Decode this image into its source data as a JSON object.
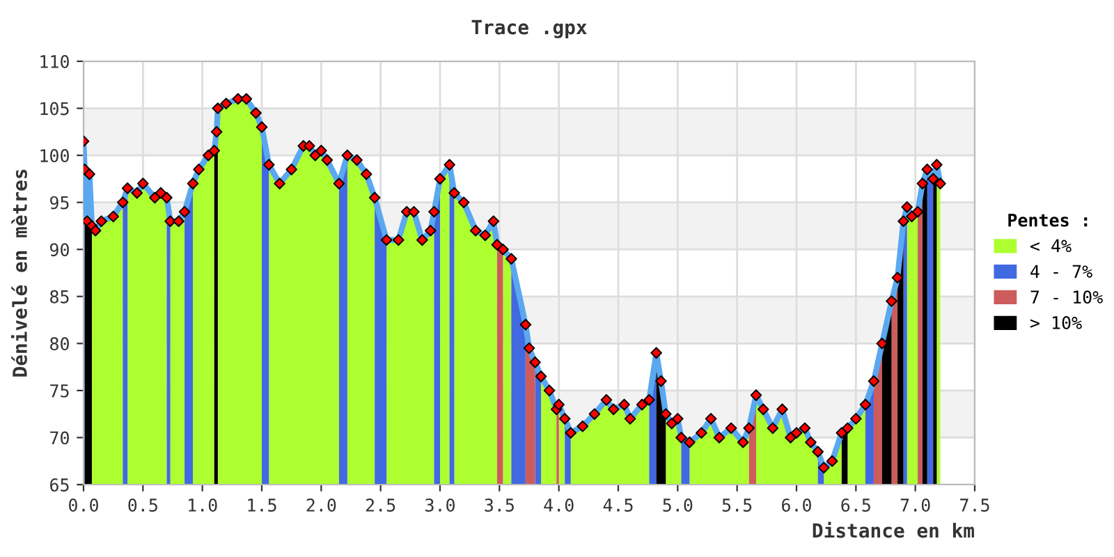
{
  "chart_data": {
    "type": "area",
    "title": "Trace .gpx",
    "xlabel": "Distance en km",
    "ylabel": "Dénivelé en mètres",
    "legend_title": "Pentes :",
    "xlim": [
      0,
      7.5
    ],
    "ylim": [
      65,
      110
    ],
    "xticks": [
      {
        "value": 0,
        "label": "0.0"
      },
      0.5,
      {
        "value": 1,
        "label": "1.0"
      },
      1.5,
      {
        "value": 2,
        "label": "2.0"
      },
      2.5,
      {
        "value": 3,
        "label": "3.0"
      },
      3.5,
      {
        "value": 4,
        "label": "4.0"
      },
      4.5,
      {
        "value": 5,
        "label": "5.0"
      },
      5.5,
      {
        "value": 6,
        "label": "6.0"
      },
      6.5,
      {
        "value": 7,
        "label": "7.0"
      },
      7.5
    ],
    "yticks": [
      65,
      70,
      75,
      80,
      85,
      90,
      95,
      100,
      105,
      110
    ],
    "grid": true,
    "legend": "right",
    "bands": [
      {
        "axis": "y",
        "from": 70,
        "to": 75,
        "color": "#f2f2f2"
      },
      {
        "axis": "y",
        "from": 80,
        "to": 85,
        "color": "#f2f2f2"
      },
      {
        "axis": "y",
        "from": 90,
        "to": 95,
        "color": "#f2f2f2"
      },
      {
        "axis": "y",
        "from": 100,
        "to": 105,
        "color": "#f2f2f2"
      }
    ],
    "series": [
      {
        "name": "< 4%",
        "color": "#adff2f",
        "x": [
          0.07,
          0.1,
          0.15,
          0.25,
          0.33,
          null,
          0.37,
          0.45,
          0.5,
          0.6,
          0.65,
          0.7,
          null,
          0.73,
          0.8,
          0.85,
          null,
          0.92,
          0.97,
          1.05,
          1.1,
          null,
          1.13,
          1.2,
          1.3,
          1.37,
          1.45,
          1.5,
          null,
          1.56,
          1.65,
          1.75,
          1.85,
          1.9,
          1.95,
          2.0,
          2.05,
          2.15,
          null,
          2.22,
          2.3,
          2.38,
          2.45,
          null,
          2.55,
          2.65,
          2.72,
          2.78,
          2.85,
          2.92,
          2.95,
          null,
          3.0,
          3.08,
          null,
          3.12,
          3.2,
          3.3,
          3.38,
          3.45,
          3.48,
          null,
          3.53,
          3.6,
          null,
          3.85,
          3.92,
          3.98,
          null,
          4.0,
          4.05,
          null,
          4.1,
          4.2,
          4.3,
          4.4,
          4.46,
          4.55,
          4.6,
          4.7,
          4.76,
          null,
          4.9,
          4.95,
          5.0,
          5.03,
          null,
          5.1,
          5.2,
          5.28,
          5.35,
          5.45,
          5.55,
          5.6,
          null,
          5.66,
          5.72,
          5.8,
          5.88,
          5.95,
          6.0,
          6.07,
          6.12,
          6.18,
          null,
          6.23,
          6.3,
          6.38,
          null,
          6.43,
          6.5,
          6.58,
          null,
          6.93,
          6.97,
          7.02,
          null,
          7.18,
          7.21
        ],
        "values": [
          92.5,
          92,
          93,
          93.5,
          95,
          null,
          96.5,
          96,
          97,
          95.5,
          96,
          95.5,
          null,
          93,
          93,
          94,
          null,
          97,
          98.5,
          100,
          100.5,
          null,
          105,
          105.5,
          106,
          106,
          104.5,
          103,
          null,
          99,
          97,
          98.5,
          101,
          101,
          100,
          100.5,
          99.5,
          97,
          null,
          100,
          99.5,
          98,
          95.5,
          null,
          91,
          91,
          94,
          94,
          91,
          92,
          94,
          null,
          97.5,
          99,
          null,
          96,
          95,
          92,
          91.5,
          93,
          90.5,
          null,
          90,
          89,
          null,
          76.5,
          75,
          73,
          null,
          73.5,
          72,
          null,
          70.5,
          71.2,
          72.5,
          74,
          73,
          73.5,
          72,
          73.5,
          74,
          null,
          72.5,
          71.5,
          72,
          70,
          null,
          69.5,
          70.5,
          72,
          70,
          71,
          69.5,
          71,
          null,
          74.5,
          73,
          71,
          73,
          70,
          70.5,
          71,
          69.5,
          68.5,
          null,
          66.8,
          67.5,
          70.5,
          null,
          71,
          72,
          73.5,
          null,
          94.5,
          93.5,
          94,
          null,
          99,
          97
        ]
      },
      {
        "name": "4 - 7%",
        "color": "#4169e1",
        "x": [
          0.0,
          0.01,
          null,
          0.33,
          0.37,
          null,
          0.7,
          0.73,
          null,
          0.85,
          0.92,
          null,
          1.5,
          1.56,
          null,
          2.15,
          2.22,
          null,
          2.45,
          2.55,
          null,
          2.95,
          3.0,
          null,
          3.08,
          3.12,
          null,
          3.6,
          3.72,
          null,
          3.8,
          3.85,
          null,
          4.05,
          4.1,
          null,
          4.76,
          4.82,
          null,
          5.03,
          5.1,
          null,
          6.18,
          6.23,
          null,
          6.58,
          6.65,
          null,
          6.9,
          6.93,
          null,
          7.1,
          7.15
        ],
        "values": [
          101.5,
          98.5,
          null,
          95,
          96.5,
          null,
          95.5,
          93,
          null,
          94,
          97,
          null,
          103,
          99,
          null,
          97,
          100,
          null,
          95.5,
          91,
          null,
          94,
          97.5,
          null,
          99,
          96,
          null,
          89,
          82,
          null,
          78,
          76.5,
          null,
          72,
          70.5,
          null,
          74,
          79,
          null,
          70,
          69.5,
          null,
          68.5,
          66.8,
          null,
          73.5,
          76,
          null,
          93,
          94.5,
          null,
          98.5,
          97.5
        ]
      },
      {
        "name": "7 - 10%",
        "color": "#cd5c5c",
        "x": [
          3.48,
          3.53,
          null,
          3.72,
          3.75,
          3.8,
          null,
          3.98,
          4.0,
          null,
          5.6,
          5.66,
          null,
          6.65,
          6.72,
          null,
          6.8,
          6.85,
          null,
          7.02,
          7.06
        ],
        "values": [
          90.5,
          90,
          null,
          82,
          79.5,
          78,
          null,
          73,
          73.5,
          null,
          71,
          74.5,
          null,
          76,
          80,
          null,
          84.5,
          87,
          null,
          94,
          97
        ]
      },
      {
        "name": "> 10%",
        "color": "#000000",
        "x": [
          0.01,
          0.03,
          0.05,
          0.07,
          null,
          1.1,
          1.12,
          1.13,
          null,
          4.82,
          4.86,
          4.9,
          null,
          6.38,
          6.43,
          null,
          6.72,
          6.8,
          null,
          6.85,
          6.9,
          null,
          7.06,
          7.1,
          null,
          7.15,
          7.18
        ],
        "values": [
          98.5,
          93,
          98,
          92.5,
          null,
          100.5,
          102.5,
          105,
          null,
          79,
          76,
          72.5,
          null,
          70.5,
          71,
          null,
          80,
          84.5,
          null,
          87,
          93,
          null,
          97,
          98.5,
          null,
          97.5,
          99
        ]
      },
      {
        "type": "line",
        "color": "#5aa8f0",
        "marker": "none",
        "x": [
          0.0,
          0.01,
          0.03,
          0.05,
          0.07,
          0.1,
          0.15,
          0.25,
          0.33,
          0.37,
          0.45,
          0.5,
          0.6,
          0.65,
          0.7,
          0.73,
          0.8,
          0.85,
          0.92,
          0.97,
          1.05,
          1.1,
          1.12,
          1.13,
          1.2,
          1.3,
          1.37,
          1.45,
          1.5,
          1.56,
          1.65,
          1.75,
          1.85,
          1.9,
          1.95,
          2.0,
          2.05,
          2.15,
          2.22,
          2.3,
          2.38,
          2.45,
          2.55,
          2.65,
          2.72,
          2.78,
          2.85,
          2.92,
          2.95,
          3.0,
          3.08,
          3.12,
          3.2,
          3.3,
          3.38,
          3.45,
          3.48,
          3.53,
          3.6,
          3.72,
          3.75,
          3.8,
          3.85,
          3.92,
          3.98,
          4.0,
          4.05,
          4.1,
          4.2,
          4.3,
          4.4,
          4.46,
          4.55,
          4.6,
          4.7,
          4.76,
          4.82,
          4.86,
          4.9,
          4.95,
          5.0,
          5.03,
          5.1,
          5.2,
          5.28,
          5.35,
          5.45,
          5.55,
          5.6,
          5.66,
          5.72,
          5.8,
          5.88,
          5.95,
          6.0,
          6.07,
          6.12,
          6.18,
          6.23,
          6.3,
          6.38,
          6.43,
          6.5,
          6.58,
          6.65,
          6.72,
          6.8,
          6.85,
          6.9,
          6.93,
          6.97,
          7.02,
          7.06,
          7.1,
          7.15,
          7.18,
          7.21
        ],
        "values": [
          101.5,
          98.5,
          93,
          98,
          92.5,
          92,
          93,
          93.5,
          95,
          96.5,
          96,
          97,
          95.5,
          96,
          95.5,
          93,
          93,
          94,
          97,
          98.5,
          100,
          100.5,
          102.5,
          105,
          105.5,
          106,
          106,
          104.5,
          103,
          99,
          97,
          98.5,
          101,
          101,
          100,
          100.5,
          99.5,
          97,
          100,
          99.5,
          98,
          95.5,
          91,
          91,
          94,
          94,
          91,
          92,
          94,
          97.5,
          99,
          96,
          95,
          92,
          91.5,
          93,
          90.5,
          90,
          89,
          82,
          79.5,
          78,
          76.5,
          75,
          73,
          73.5,
          72,
          70.5,
          71.2,
          72.5,
          74,
          73,
          73.5,
          72,
          73.5,
          74,
          79,
          76,
          72.5,
          71.5,
          72,
          70,
          69.5,
          70.5,
          72,
          70,
          71,
          69.5,
          71,
          74.5,
          73,
          71,
          73,
          70,
          70.5,
          71,
          69.5,
          68.5,
          66.8,
          67.5,
          70.5,
          71,
          72,
          73.5,
          76,
          80,
          84.5,
          87,
          93,
          94.5,
          93.5,
          94,
          97,
          98.5,
          97.5,
          99,
          97
        ]
      },
      {
        "type": "scatter",
        "color": "#ff0000",
        "marker": "diamond",
        "x": [
          0.0,
          0.01,
          0.03,
          0.05,
          0.07,
          0.1,
          0.15,
          0.25,
          0.33,
          0.37,
          0.45,
          0.5,
          0.6,
          0.65,
          0.7,
          0.73,
          0.8,
          0.85,
          0.92,
          0.97,
          1.05,
          1.1,
          1.12,
          1.13,
          1.2,
          1.3,
          1.37,
          1.45,
          1.5,
          1.56,
          1.65,
          1.75,
          1.85,
          1.9,
          1.95,
          2.0,
          2.05,
          2.15,
          2.22,
          2.3,
          2.38,
          2.45,
          2.55,
          2.65,
          2.72,
          2.78,
          2.85,
          2.92,
          2.95,
          3.0,
          3.08,
          3.12,
          3.2,
          3.3,
          3.38,
          3.45,
          3.48,
          3.53,
          3.6,
          3.72,
          3.75,
          3.8,
          3.85,
          3.92,
          3.98,
          4.0,
          4.05,
          4.1,
          4.2,
          4.3,
          4.4,
          4.46,
          4.55,
          4.6,
          4.7,
          4.76,
          4.82,
          4.86,
          4.9,
          4.95,
          5.0,
          5.03,
          5.1,
          5.2,
          5.28,
          5.35,
          5.45,
          5.55,
          5.6,
          5.66,
          5.72,
          5.8,
          5.88,
          5.95,
          6.0,
          6.07,
          6.12,
          6.18,
          6.23,
          6.3,
          6.38,
          6.43,
          6.5,
          6.58,
          6.65,
          6.72,
          6.8,
          6.85,
          6.9,
          6.93,
          6.97,
          7.02,
          7.06,
          7.1,
          7.15,
          7.18,
          7.21
        ],
        "values": [
          101.5,
          98.5,
          93,
          98,
          92.5,
          92,
          93,
          93.5,
          95,
          96.5,
          96,
          97,
          95.5,
          96,
          95.5,
          93,
          93,
          94,
          97,
          98.5,
          100,
          100.5,
          102.5,
          105,
          105.5,
          106,
          106,
          104.5,
          103,
          99,
          97,
          98.5,
          101,
          101,
          100,
          100.5,
          99.5,
          97,
          100,
          99.5,
          98,
          95.5,
          91,
          91,
          94,
          94,
          91,
          92,
          94,
          97.5,
          99,
          96,
          95,
          92,
          91.5,
          93,
          90.5,
          90,
          89,
          82,
          79.5,
          78,
          76.5,
          75,
          73,
          73.5,
          72,
          70.5,
          71.2,
          72.5,
          74,
          73,
          73.5,
          72,
          73.5,
          74,
          79,
          76,
          72.5,
          71.5,
          72,
          70,
          69.5,
          70.5,
          72,
          70,
          71,
          69.5,
          71,
          74.5,
          73,
          71,
          73,
          70,
          70.5,
          71,
          69.5,
          68.5,
          66.8,
          67.5,
          70.5,
          71,
          72,
          73.5,
          76,
          80,
          84.5,
          87,
          93,
          94.5,
          93.5,
          94,
          97,
          98.5,
          97.5,
          99,
          97
        ]
      }
    ]
  }
}
